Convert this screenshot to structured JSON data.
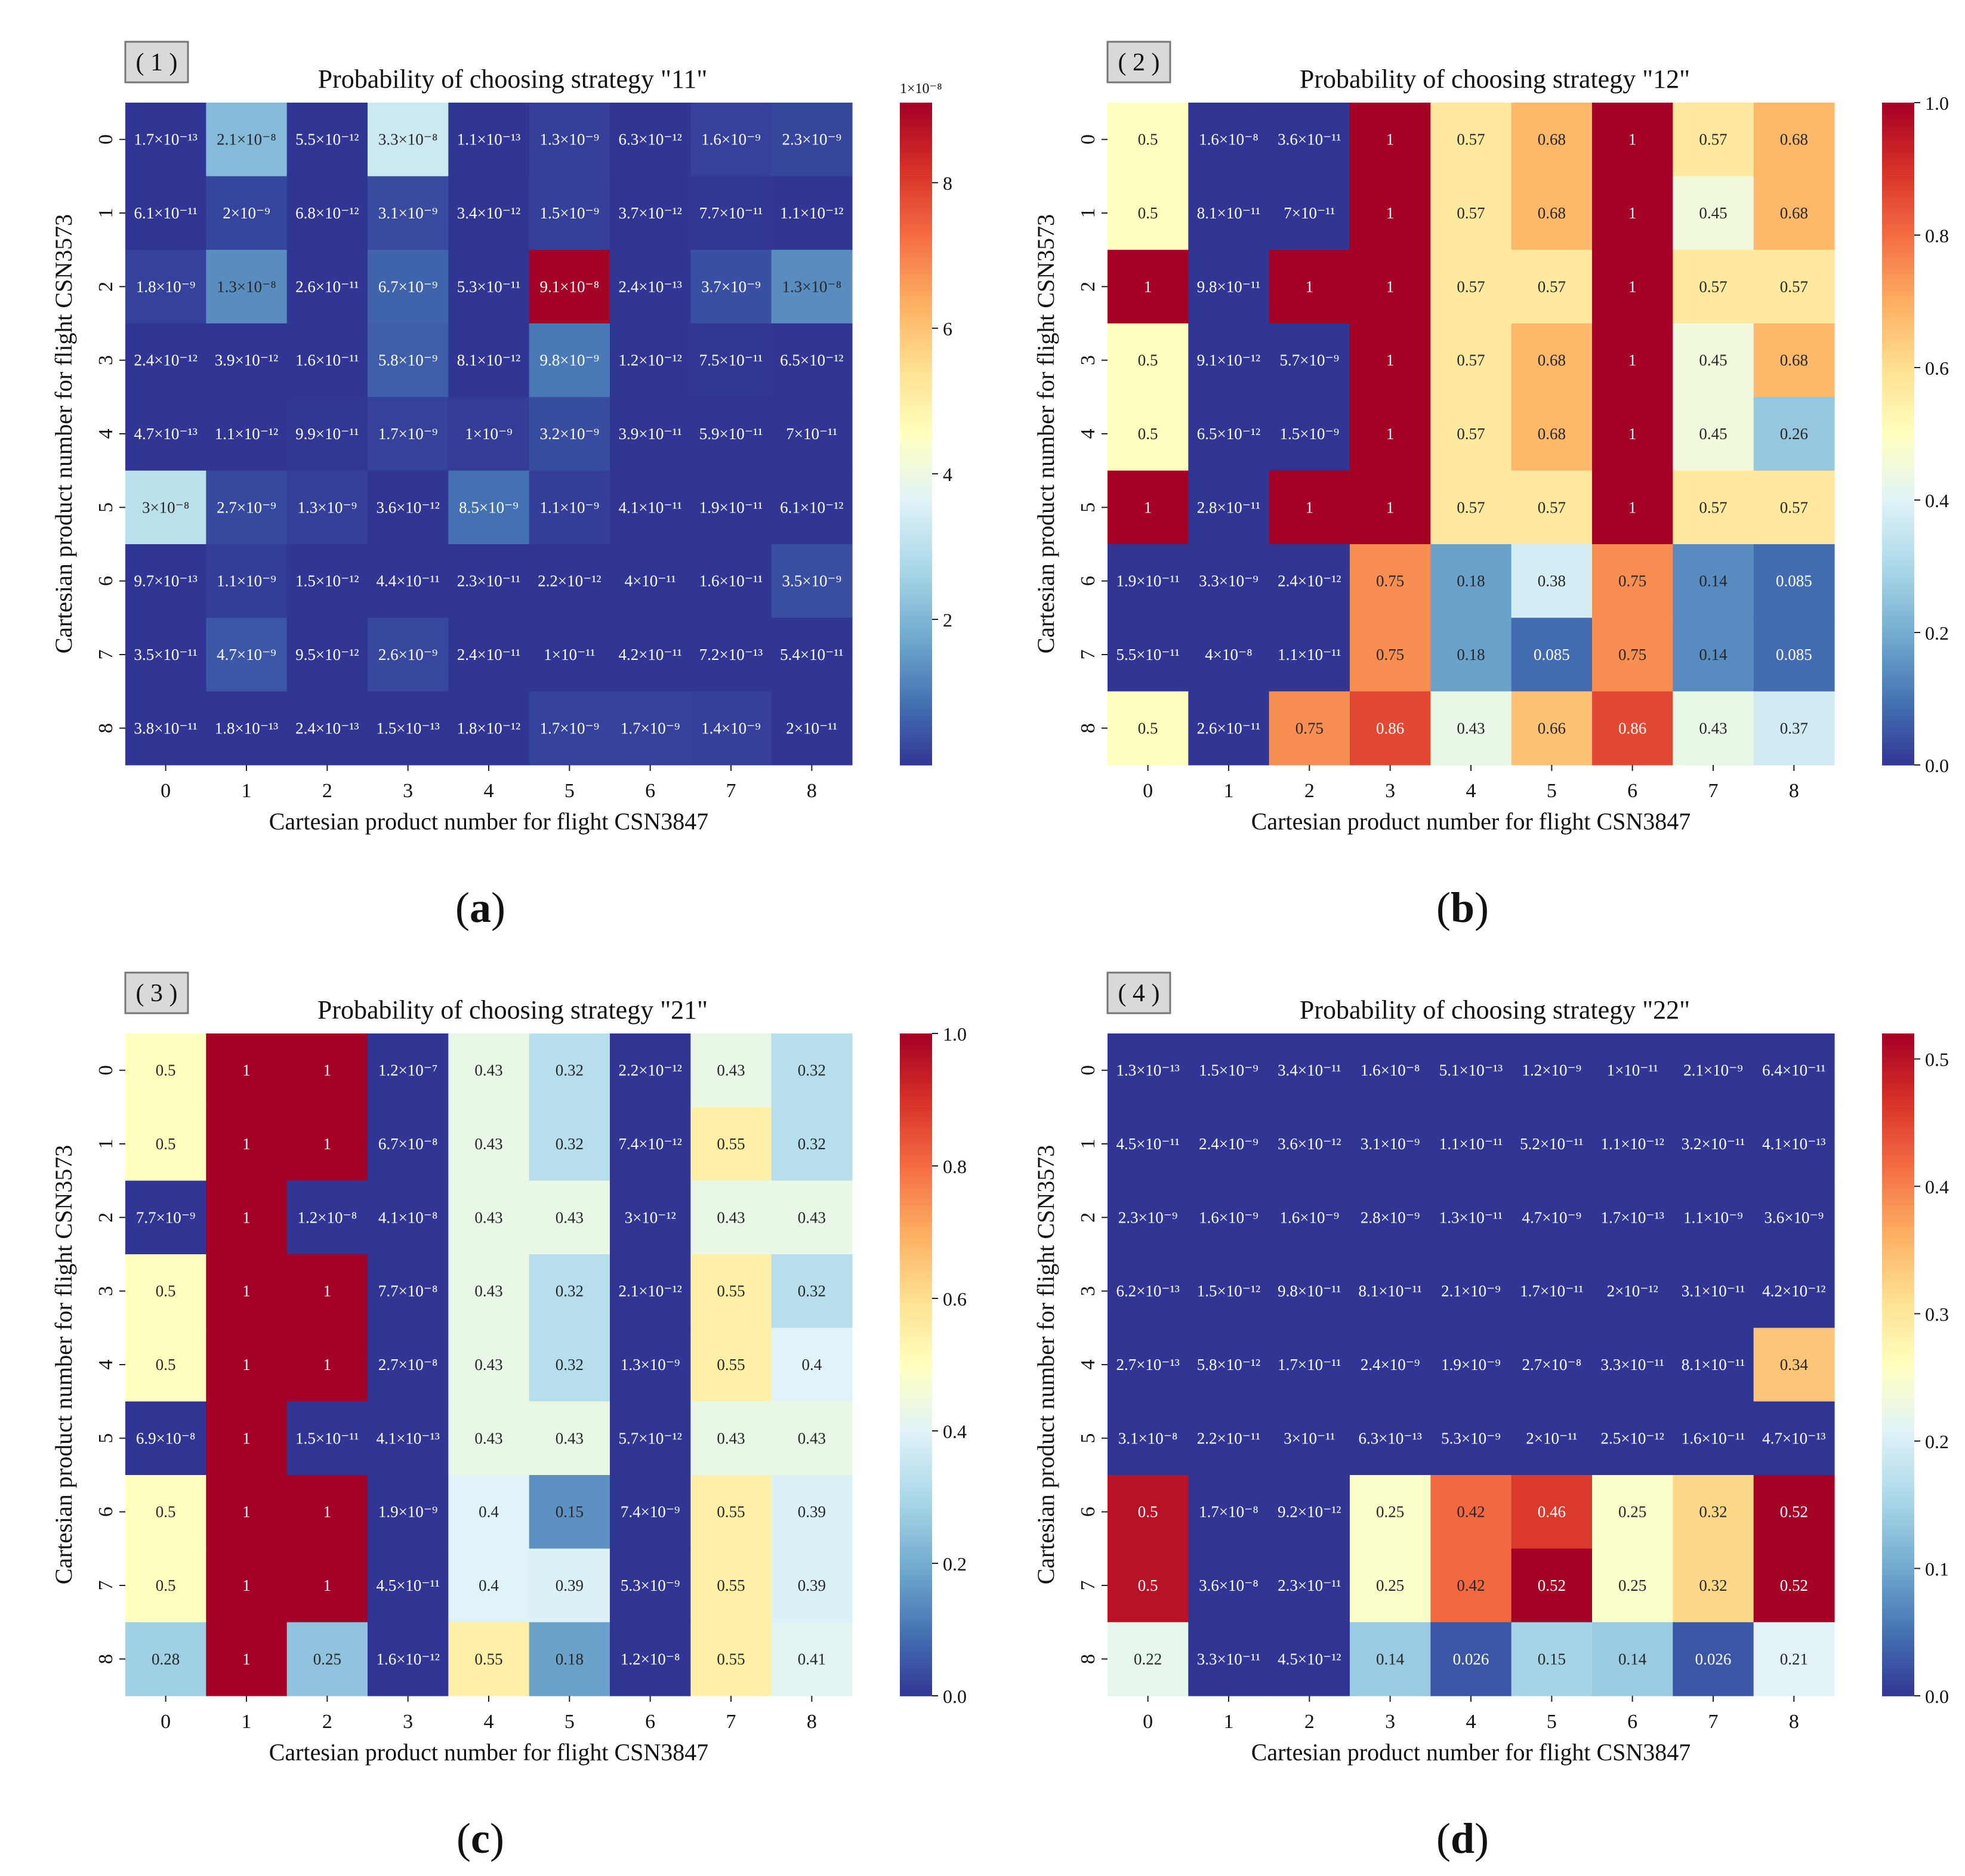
{
  "figure": {
    "captions": [
      "(a)",
      "(b)",
      "(c)",
      "(d)"
    ],
    "caption_letters": [
      "a",
      "b",
      "c",
      "d"
    ]
  },
  "chart_data": [
    {
      "type": "heatmap",
      "panel_tag": "( 1 )",
      "title": "Probability of choosing strategy \"11\"",
      "xlabel": "Cartesian product number for flight CSN3847",
      "ylabel": "Cartesian product number for flight CSN3573",
      "x_ticks": [
        "0",
        "1",
        "2",
        "3",
        "4",
        "5",
        "6",
        "7",
        "8"
      ],
      "y_ticks": [
        "0",
        "1",
        "2",
        "3",
        "4",
        "5",
        "6",
        "7",
        "8"
      ],
      "colormap": "RdYlBu_r",
      "vmin": 0,
      "vmax": 9.1e-08,
      "colorbar_ticks": [
        {
          "value": 2e-08,
          "label": "2"
        },
        {
          "value": 4e-08,
          "label": "4"
        },
        {
          "value": 6e-08,
          "label": "6"
        },
        {
          "value": 8e-08,
          "label": "8"
        }
      ],
      "colorbar_multiplier": "1×10⁻⁸",
      "values": [
        [
          1.7e-13,
          2.1e-08,
          5.5e-12,
          3.3e-08,
          1.1e-13,
          1.3e-09,
          6.3e-12,
          1.6e-09,
          2.3e-09
        ],
        [
          6.1e-11,
          2e-09,
          6.8e-12,
          3.1e-09,
          3.4e-12,
          1.5e-09,
          3.7e-12,
          7.7e-11,
          1.1e-12
        ],
        [
          1.8e-09,
          1.3e-08,
          2.6e-11,
          6.7e-09,
          5.3e-11,
          9.1e-08,
          2.4e-13,
          3.7e-09,
          1.3e-08
        ],
        [
          2.4e-12,
          3.9e-12,
          1.6e-11,
          5.8e-09,
          8.1e-12,
          9.8e-09,
          1.2e-12,
          7.5e-11,
          6.5e-12
        ],
        [
          4.7e-13,
          1.1e-12,
          9.9e-11,
          1.7e-09,
          1e-09,
          3.2e-09,
          3.9e-11,
          5.9e-11,
          7e-11
        ],
        [
          3e-08,
          2.7e-09,
          1.3e-09,
          3.6e-12,
          8.5e-09,
          1.1e-09,
          4.1e-11,
          1.9e-11,
          6.1e-12
        ],
        [
          9.7e-13,
          1.1e-09,
          1.5e-12,
          4.4e-11,
          2.3e-11,
          2.2e-12,
          4e-11,
          1.6e-11,
          3.5e-09
        ],
        [
          3.5e-11,
          4.7e-09,
          9.5e-12,
          2.6e-09,
          2.4e-11,
          1e-11,
          4.2e-11,
          7.2e-13,
          5.4e-11
        ],
        [
          3.8e-11,
          1.8e-13,
          2.4e-13,
          1.5e-13,
          1.8e-12,
          1.7e-09,
          1.7e-09,
          1.4e-09,
          2e-11
        ]
      ],
      "labels": [
        [
          "1.7×10⁻¹³",
          "2.1×10⁻⁸",
          "5.5×10⁻¹²",
          "3.3×10⁻⁸",
          "1.1×10⁻¹³",
          "1.3×10⁻⁹",
          "6.3×10⁻¹²",
          "1.6×10⁻⁹",
          "2.3×10⁻⁹"
        ],
        [
          "6.1×10⁻¹¹",
          "2×10⁻⁹",
          "6.8×10⁻¹²",
          "3.1×10⁻⁹",
          "3.4×10⁻¹²",
          "1.5×10⁻⁹",
          "3.7×10⁻¹²",
          "7.7×10⁻¹¹",
          "1.1×10⁻¹²"
        ],
        [
          "1.8×10⁻⁹",
          "1.3×10⁻⁸",
          "2.6×10⁻¹¹",
          "6.7×10⁻⁹",
          "5.3×10⁻¹¹",
          "9.1×10⁻⁸",
          "2.4×10⁻¹³",
          "3.7×10⁻⁹",
          "1.3×10⁻⁸"
        ],
        [
          "2.4×10⁻¹²",
          "3.9×10⁻¹²",
          "1.6×10⁻¹¹",
          "5.8×10⁻⁹",
          "8.1×10⁻¹²",
          "9.8×10⁻⁹",
          "1.2×10⁻¹²",
          "7.5×10⁻¹¹",
          "6.5×10⁻¹²"
        ],
        [
          "4.7×10⁻¹³",
          "1.1×10⁻¹²",
          "9.9×10⁻¹¹",
          "1.7×10⁻⁹",
          "1×10⁻⁹",
          "3.2×10⁻⁹",
          "3.9×10⁻¹¹",
          "5.9×10⁻¹¹",
          "7×10⁻¹¹"
        ],
        [
          "3×10⁻⁸",
          "2.7×10⁻⁹",
          "1.3×10⁻⁹",
          "3.6×10⁻¹²",
          "8.5×10⁻⁹",
          "1.1×10⁻⁹",
          "4.1×10⁻¹¹",
          "1.9×10⁻¹¹",
          "6.1×10⁻¹²"
        ],
        [
          "9.7×10⁻¹³",
          "1.1×10⁻⁹",
          "1.5×10⁻¹²",
          "4.4×10⁻¹¹",
          "2.3×10⁻¹¹",
          "2.2×10⁻¹²",
          "4×10⁻¹¹",
          "1.6×10⁻¹¹",
          "3.5×10⁻⁹"
        ],
        [
          "3.5×10⁻¹¹",
          "4.7×10⁻⁹",
          "9.5×10⁻¹²",
          "2.6×10⁻⁹",
          "2.4×10⁻¹¹",
          "1×10⁻¹¹",
          "4.2×10⁻¹¹",
          "7.2×10⁻¹³",
          "5.4×10⁻¹¹"
        ],
        [
          "3.8×10⁻¹¹",
          "1.8×10⁻¹³",
          "2.4×10⁻¹³",
          "1.5×10⁻¹³",
          "1.8×10⁻¹²",
          "1.7×10⁻⁹",
          "1.7×10⁻⁹",
          "1.4×10⁻⁹",
          "2×10⁻¹¹"
        ]
      ]
    },
    {
      "type": "heatmap",
      "panel_tag": "( 2 )",
      "title": "Probability of choosing strategy \"12\"",
      "xlabel": "Cartesian product number for flight CSN3847",
      "ylabel": "Cartesian product number for flight CSN3573",
      "x_ticks": [
        "0",
        "1",
        "2",
        "3",
        "4",
        "5",
        "6",
        "7",
        "8"
      ],
      "y_ticks": [
        "0",
        "1",
        "2",
        "3",
        "4",
        "5",
        "6",
        "7",
        "8"
      ],
      "colormap": "RdYlBu_r",
      "vmin": 0,
      "vmax": 1,
      "colorbar_ticks": [
        {
          "value": 0,
          "label": "0.0"
        },
        {
          "value": 0.2,
          "label": "0.2"
        },
        {
          "value": 0.4,
          "label": "0.4"
        },
        {
          "value": 0.6,
          "label": "0.6"
        },
        {
          "value": 0.8,
          "label": "0.8"
        },
        {
          "value": 1,
          "label": "1.0"
        }
      ],
      "colorbar_multiplier": "",
      "values": [
        [
          0.5,
          1.6e-08,
          3.6e-11,
          1,
          0.57,
          0.68,
          1,
          0.57,
          0.68
        ],
        [
          0.5,
          8.1e-11,
          7e-11,
          1,
          0.57,
          0.68,
          1,
          0.45,
          0.68
        ],
        [
          1,
          9.8e-11,
          1,
          1,
          0.57,
          0.57,
          1,
          0.57,
          0.57
        ],
        [
          0.5,
          9.1e-12,
          5.7e-09,
          1,
          0.57,
          0.68,
          1,
          0.45,
          0.68
        ],
        [
          0.5,
          6.5e-12,
          1.5e-09,
          1,
          0.57,
          0.68,
          1,
          0.45,
          0.26
        ],
        [
          1,
          2.8e-11,
          1,
          1,
          0.57,
          0.57,
          1,
          0.57,
          0.57
        ],
        [
          1.9e-11,
          3.3e-09,
          2.4e-12,
          0.75,
          0.18,
          0.38,
          0.75,
          0.14,
          0.085
        ],
        [
          5.5e-11,
          4e-08,
          1.1e-11,
          0.75,
          0.18,
          0.085,
          0.75,
          0.14,
          0.085
        ],
        [
          0.5,
          2.6e-11,
          0.75,
          0.86,
          0.43,
          0.66,
          0.86,
          0.43,
          0.37
        ]
      ],
      "labels": [
        [
          "0.5",
          "1.6×10⁻⁸",
          "3.6×10⁻¹¹",
          "1",
          "0.57",
          "0.68",
          "1",
          "0.57",
          "0.68"
        ],
        [
          "0.5",
          "8.1×10⁻¹¹",
          "7×10⁻¹¹",
          "1",
          "0.57",
          "0.68",
          "1",
          "0.45",
          "0.68"
        ],
        [
          "1",
          "9.8×10⁻¹¹",
          "1",
          "1",
          "0.57",
          "0.57",
          "1",
          "0.57",
          "0.57"
        ],
        [
          "0.5",
          "9.1×10⁻¹²",
          "5.7×10⁻⁹",
          "1",
          "0.57",
          "0.68",
          "1",
          "0.45",
          "0.68"
        ],
        [
          "0.5",
          "6.5×10⁻¹²",
          "1.5×10⁻⁹",
          "1",
          "0.57",
          "0.68",
          "1",
          "0.45",
          "0.26"
        ],
        [
          "1",
          "2.8×10⁻¹¹",
          "1",
          "1",
          "0.57",
          "0.57",
          "1",
          "0.57",
          "0.57"
        ],
        [
          "1.9×10⁻¹¹",
          "3.3×10⁻⁹",
          "2.4×10⁻¹²",
          "0.75",
          "0.18",
          "0.38",
          "0.75",
          "0.14",
          "0.085"
        ],
        [
          "5.5×10⁻¹¹",
          "4×10⁻⁸",
          "1.1×10⁻¹¹",
          "0.75",
          "0.18",
          "0.085",
          "0.75",
          "0.14",
          "0.085"
        ],
        [
          "0.5",
          "2.6×10⁻¹¹",
          "0.75",
          "0.86",
          "0.43",
          "0.66",
          "0.86",
          "0.43",
          "0.37"
        ]
      ]
    },
    {
      "type": "heatmap",
      "panel_tag": "( 3 )",
      "title": "Probability of choosing strategy \"21\"",
      "xlabel": "Cartesian product number for flight CSN3847",
      "ylabel": "Cartesian product number for flight CSN3573",
      "x_ticks": [
        "0",
        "1",
        "2",
        "3",
        "4",
        "5",
        "6",
        "7",
        "8"
      ],
      "y_ticks": [
        "0",
        "1",
        "2",
        "3",
        "4",
        "5",
        "6",
        "7",
        "8"
      ],
      "colormap": "RdYlBu_r",
      "vmin": 0,
      "vmax": 1,
      "colorbar_ticks": [
        {
          "value": 0,
          "label": "0.0"
        },
        {
          "value": 0.2,
          "label": "0.2"
        },
        {
          "value": 0.4,
          "label": "0.4"
        },
        {
          "value": 0.6,
          "label": "0.6"
        },
        {
          "value": 0.8,
          "label": "0.8"
        },
        {
          "value": 1,
          "label": "1.0"
        }
      ],
      "colorbar_multiplier": "",
      "values": [
        [
          0.5,
          1,
          1,
          1.2e-07,
          0.43,
          0.32,
          2.2e-12,
          0.43,
          0.32
        ],
        [
          0.5,
          1,
          1,
          6.7e-08,
          0.43,
          0.32,
          7.4e-12,
          0.55,
          0.32
        ],
        [
          7.7e-09,
          1,
          1.2e-08,
          4.1e-08,
          0.43,
          0.43,
          3e-12,
          0.43,
          0.43
        ],
        [
          0.5,
          1,
          1,
          7.7e-08,
          0.43,
          0.32,
          2.1e-12,
          0.55,
          0.32
        ],
        [
          0.5,
          1,
          1,
          2.7e-08,
          0.43,
          0.32,
          1.3e-09,
          0.55,
          0.4
        ],
        [
          6.9e-08,
          1,
          1.5e-11,
          4.1e-13,
          0.43,
          0.43,
          5.7e-12,
          0.43,
          0.43
        ],
        [
          0.5,
          1,
          1,
          1.9e-09,
          0.4,
          0.15,
          7.4e-09,
          0.55,
          0.39
        ],
        [
          0.5,
          1,
          1,
          4.5e-11,
          0.4,
          0.39,
          5.3e-09,
          0.55,
          0.39
        ],
        [
          0.28,
          1,
          0.25,
          1.6e-12,
          0.55,
          0.18,
          1.2e-08,
          0.55,
          0.41
        ]
      ],
      "labels": [
        [
          "0.5",
          "1",
          "1",
          "1.2×10⁻⁷",
          "0.43",
          "0.32",
          "2.2×10⁻¹²",
          "0.43",
          "0.32"
        ],
        [
          "0.5",
          "1",
          "1",
          "6.7×10⁻⁸",
          "0.43",
          "0.32",
          "7.4×10⁻¹²",
          "0.55",
          "0.32"
        ],
        [
          "7.7×10⁻⁹",
          "1",
          "1.2×10⁻⁸",
          "4.1×10⁻⁸",
          "0.43",
          "0.43",
          "3×10⁻¹²",
          "0.43",
          "0.43"
        ],
        [
          "0.5",
          "1",
          "1",
          "7.7×10⁻⁸",
          "0.43",
          "0.32",
          "2.1×10⁻¹²",
          "0.55",
          "0.32"
        ],
        [
          "0.5",
          "1",
          "1",
          "2.7×10⁻⁸",
          "0.43",
          "0.32",
          "1.3×10⁻⁹",
          "0.55",
          "0.4"
        ],
        [
          "6.9×10⁻⁸",
          "1",
          "1.5×10⁻¹¹",
          "4.1×10⁻¹³",
          "0.43",
          "0.43",
          "5.7×10⁻¹²",
          "0.43",
          "0.43"
        ],
        [
          "0.5",
          "1",
          "1",
          "1.9×10⁻⁹",
          "0.4",
          "0.15",
          "7.4×10⁻⁹",
          "0.55",
          "0.39"
        ],
        [
          "0.5",
          "1",
          "1",
          "4.5×10⁻¹¹",
          "0.4",
          "0.39",
          "5.3×10⁻⁹",
          "0.55",
          "0.39"
        ],
        [
          "0.28",
          "1",
          "0.25",
          "1.6×10⁻¹²",
          "0.55",
          "0.18",
          "1.2×10⁻⁸",
          "0.55",
          "0.41"
        ]
      ]
    },
    {
      "type": "heatmap",
      "panel_tag": "( 4 )",
      "title": "Probability of choosing strategy \"22\"",
      "xlabel": "Cartesian product number for flight CSN3847",
      "ylabel": "Cartesian product number for flight CSN3573",
      "x_ticks": [
        "0",
        "1",
        "2",
        "3",
        "4",
        "5",
        "6",
        "7",
        "8"
      ],
      "y_ticks": [
        "0",
        "1",
        "2",
        "3",
        "4",
        "5",
        "6",
        "7",
        "8"
      ],
      "colormap": "RdYlBu_r",
      "vmin": 0,
      "vmax": 0.52,
      "colorbar_ticks": [
        {
          "value": 0,
          "label": "0.0"
        },
        {
          "value": 0.1,
          "label": "0.1"
        },
        {
          "value": 0.2,
          "label": "0.2"
        },
        {
          "value": 0.3,
          "label": "0.3"
        },
        {
          "value": 0.4,
          "label": "0.4"
        },
        {
          "value": 0.5,
          "label": "0.5"
        }
      ],
      "colorbar_multiplier": "",
      "values": [
        [
          1.3e-13,
          1.5e-09,
          3.4e-11,
          1.6e-08,
          5.1e-13,
          1.2e-09,
          1e-11,
          2.1e-09,
          6.4e-11
        ],
        [
          4.5e-11,
          2.4e-09,
          3.6e-12,
          3.1e-09,
          1.1e-11,
          5.2e-11,
          1.1e-12,
          3.2e-11,
          4.1e-13
        ],
        [
          2.3e-09,
          1.6e-09,
          1.6e-09,
          2.8e-09,
          1.3e-11,
          4.7e-09,
          1.7e-13,
          1.1e-09,
          3.6e-09
        ],
        [
          6.2e-13,
          1.5e-12,
          9.8e-11,
          8.1e-11,
          2.1e-09,
          1.7e-11,
          2e-12,
          3.1e-11,
          4.2e-12
        ],
        [
          2.7e-13,
          5.8e-12,
          1.7e-11,
          2.4e-09,
          1.9e-09,
          2.7e-08,
          3.3e-11,
          8.1e-11,
          0.34
        ],
        [
          3.1e-08,
          2.2e-11,
          3e-11,
          6.3e-13,
          5.3e-09,
          2e-11,
          2.5e-12,
          1.6e-11,
          4.7e-13
        ],
        [
          0.5,
          1.7e-08,
          9.2e-12,
          0.25,
          0.42,
          0.46,
          0.25,
          0.32,
          0.52
        ],
        [
          0.5,
          3.6e-08,
          2.3e-11,
          0.25,
          0.42,
          0.52,
          0.25,
          0.32,
          0.52
        ],
        [
          0.22,
          3.3e-11,
          4.5e-12,
          0.14,
          0.026,
          0.15,
          0.14,
          0.026,
          0.21
        ]
      ],
      "labels": [
        [
          "1.3×10⁻¹³",
          "1.5×10⁻⁹",
          "3.4×10⁻¹¹",
          "1.6×10⁻⁸",
          "5.1×10⁻¹³",
          "1.2×10⁻⁹",
          "1×10⁻¹¹",
          "2.1×10⁻⁹",
          "6.4×10⁻¹¹"
        ],
        [
          "4.5×10⁻¹¹",
          "2.4×10⁻⁹",
          "3.6×10⁻¹²",
          "3.1×10⁻⁹",
          "1.1×10⁻¹¹",
          "5.2×10⁻¹¹",
          "1.1×10⁻¹²",
          "3.2×10⁻¹¹",
          "4.1×10⁻¹³"
        ],
        [
          "2.3×10⁻⁹",
          "1.6×10⁻⁹",
          "1.6×10⁻⁹",
          "2.8×10⁻⁹",
          "1.3×10⁻¹¹",
          "4.7×10⁻⁹",
          "1.7×10⁻¹³",
          "1.1×10⁻⁹",
          "3.6×10⁻⁹"
        ],
        [
          "6.2×10⁻¹³",
          "1.5×10⁻¹²",
          "9.8×10⁻¹¹",
          "8.1×10⁻¹¹",
          "2.1×10⁻⁹",
          "1.7×10⁻¹¹",
          "2×10⁻¹²",
          "3.1×10⁻¹¹",
          "4.2×10⁻¹²"
        ],
        [
          "2.7×10⁻¹³",
          "5.8×10⁻¹²",
          "1.7×10⁻¹¹",
          "2.4×10⁻⁹",
          "1.9×10⁻⁹",
          "2.7×10⁻⁸",
          "3.3×10⁻¹¹",
          "8.1×10⁻¹¹",
          "0.34"
        ],
        [
          "3.1×10⁻⁸",
          "2.2×10⁻¹¹",
          "3×10⁻¹¹",
          "6.3×10⁻¹³",
          "5.3×10⁻⁹",
          "2×10⁻¹¹",
          "2.5×10⁻¹²",
          "1.6×10⁻¹¹",
          "4.7×10⁻¹³"
        ],
        [
          "0.5",
          "1.7×10⁻⁸",
          "9.2×10⁻¹²",
          "0.25",
          "0.42",
          "0.46",
          "0.25",
          "0.32",
          "0.52"
        ],
        [
          "0.5",
          "3.6×10⁻⁸",
          "2.3×10⁻¹¹",
          "0.25",
          "0.42",
          "0.52",
          "0.25",
          "0.32",
          "0.52"
        ],
        [
          "0.22",
          "3.3×10⁻¹¹",
          "4.5×10⁻¹²",
          "0.14",
          "0.026",
          "0.15",
          "0.14",
          "0.026",
          "0.21"
        ]
      ]
    }
  ]
}
